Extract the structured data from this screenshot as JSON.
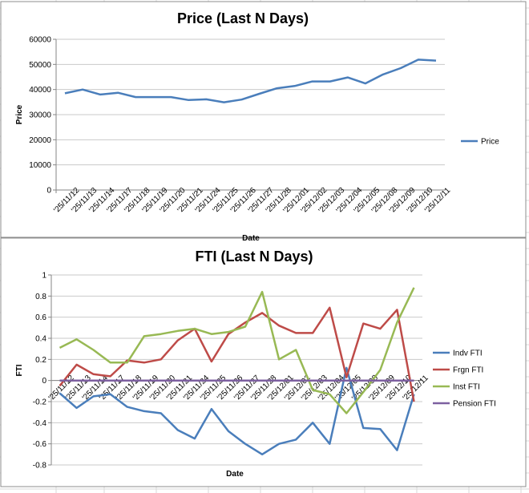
{
  "chart_data": [
    {
      "type": "line",
      "title": "Price (Last N Days)",
      "xlabel": "Date",
      "ylabel": "Price",
      "ylim": [
        0,
        60000
      ],
      "yticks": [
        "0",
        "10000",
        "20000",
        "30000",
        "40000",
        "50000",
        "60000"
      ],
      "categories": [
        "'25/11/12",
        "'25/11/13",
        "'25/11/14",
        "'25/11/17",
        "'25/11/18",
        "'25/11/19",
        "'25/11/20",
        "'25/11/21",
        "'25/11/24",
        "'25/11/25",
        "'25/11/26",
        "'25/11/27",
        "'25/11/28",
        "'25/12/01",
        "'25/12/02",
        "'25/12/03",
        "'25/12/04",
        "'25/12/05",
        "'25/12/08",
        "'25/12/09",
        "'25/12/10",
        "'25/12/11"
      ],
      "series": [
        {
          "name": "Price",
          "color": "#4a7ebb",
          "values": [
            38500,
            40000,
            38000,
            38700,
            37000,
            37000,
            37000,
            35800,
            36100,
            34900,
            36000,
            38300,
            40500,
            41400,
            43200,
            43200,
            44800,
            42400,
            46000,
            48500,
            51900,
            51500
          ]
        }
      ],
      "legend_position": "right"
    },
    {
      "type": "line",
      "title": "FTI (Last N Days)",
      "xlabel": "Date",
      "ylabel": "FTI",
      "ylim": [
        -0.8,
        1
      ],
      "yticks": [
        "-0.8",
        "-0.6",
        "-0.4",
        "-0.2",
        "0",
        "0.2",
        "0.4",
        "0.6",
        "0.8",
        "1"
      ],
      "categories": [
        "'25/11/12",
        "'25/11/13",
        "'25/11/14",
        "'25/11/17",
        "'25/11/18",
        "'25/11/19",
        "'25/11/20",
        "'25/11/21",
        "'25/11/24",
        "'25/11/25",
        "'25/11/26",
        "'25/11/27",
        "'25/11/28",
        "'25/12/01",
        "'25/12/02",
        "'25/12/03",
        "'25/12/04",
        "'25/12/05",
        "'25/12/08",
        "'25/12/09",
        "'25/12/10",
        "'25/12/11"
      ],
      "series": [
        {
          "name": "Indv FTI",
          "color": "#4a7ebb",
          "values": [
            -0.12,
            -0.26,
            -0.15,
            -0.13,
            -0.25,
            -0.29,
            -0.31,
            -0.47,
            -0.55,
            -0.27,
            -0.48,
            -0.6,
            -0.7,
            -0.6,
            -0.56,
            -0.4,
            -0.6,
            0.12,
            -0.45,
            -0.46,
            -0.66,
            -0.13
          ]
        },
        {
          "name": "Frgn FTI",
          "color": "#be4b48",
          "values": [
            -0.05,
            0.15,
            0.06,
            0.04,
            0.19,
            0.17,
            0.2,
            0.38,
            0.49,
            0.18,
            0.44,
            0.55,
            0.64,
            0.52,
            0.45,
            0.45,
            0.69,
            0.03,
            0.54,
            0.49,
            0.67,
            -0.2
          ]
        },
        {
          "name": "Inst FTI",
          "color": "#98b954",
          "values": [
            0.31,
            0.39,
            0.29,
            0.17,
            0.17,
            0.42,
            0.44,
            0.47,
            0.49,
            0.44,
            0.46,
            0.51,
            0.84,
            0.2,
            0.29,
            -0.09,
            -0.13,
            -0.31,
            -0.11,
            0.1,
            0.55,
            0.88
          ]
        },
        {
          "name": "Pension FTI",
          "color": "#7d60a0",
          "values": [
            0,
            0,
            0,
            0,
            0,
            0,
            0,
            0,
            0,
            0,
            0,
            0,
            0,
            0,
            0,
            0,
            0,
            0,
            0,
            0,
            0,
            0
          ]
        }
      ],
      "legend_position": "right"
    }
  ]
}
